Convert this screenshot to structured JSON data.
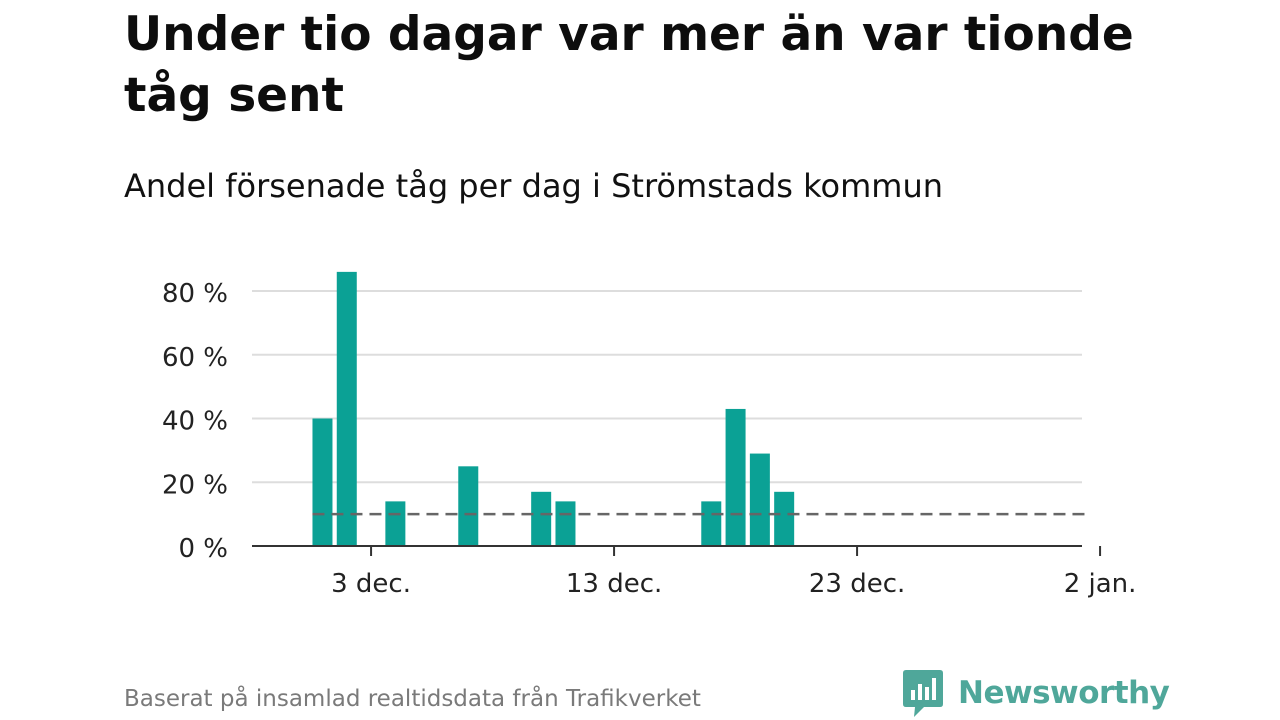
{
  "chart_data": {
    "type": "bar",
    "title": "Under tio dagar var mer än var tionde tåg sent",
    "subtitle": "Andel försenade tåg per dag i Strömstads kommun",
    "ylabel": "",
    "xlabel": "",
    "ylim": [
      0,
      80
    ],
    "y_ticks": [
      0,
      20,
      40,
      60,
      80
    ],
    "y_tick_labels": [
      "0 %",
      "20 %",
      "40 %",
      "60 %",
      "80 %"
    ],
    "x_ticks": [
      3,
      13,
      23,
      33
    ],
    "x_tick_labels": [
      "3 dec.",
      "13 dec.",
      "23 dec.",
      "2 jan."
    ],
    "x_unit": "day index (1 = 1 dec.)",
    "bar_days": [
      1,
      2,
      4,
      7,
      10,
      11,
      17,
      18,
      19,
      20
    ],
    "bar_dates": [
      "1 dec.",
      "2 dec.",
      "4 dec.",
      "7 dec.",
      "10 dec.",
      "11 dec.",
      "17 dec.",
      "18 dec.",
      "19 dec.",
      "20 dec."
    ],
    "values": [
      40,
      86,
      14,
      25,
      17,
      14,
      14,
      43,
      29,
      17
    ],
    "reference_line": {
      "value": 10,
      "from_day": 1,
      "to_day": 32,
      "style": "dashed"
    },
    "colors": {
      "bar": "#0ba195",
      "reference": "#666666",
      "grid": "#dddddd",
      "axis": "#333333"
    }
  },
  "footer": {
    "source": "Baserat på insamlad realtidsdata från Trafikverket"
  },
  "brand": {
    "name": "Newsworthy",
    "color": "#4fa79a",
    "icon": "newsworthy-logo-icon"
  }
}
